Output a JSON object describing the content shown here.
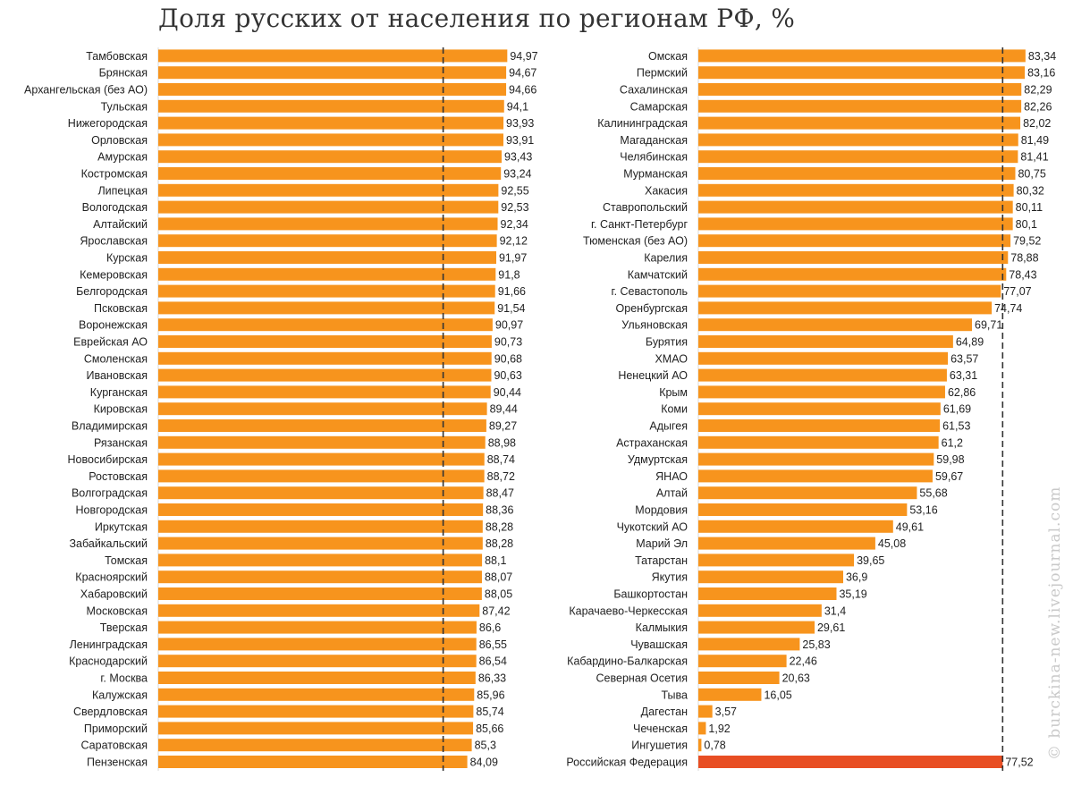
{
  "title": "Доля русских от населения по регионам РФ, %",
  "watermark": "© burckina-new.livejournal.com",
  "colors": {
    "bar": "#f7941d",
    "highlight_bar": "#e84e23",
    "reference_line": "#333333",
    "grid": "#d9d9d9"
  },
  "chart_data": [
    {
      "type": "bar",
      "orientation": "horizontal",
      "xlim": [
        0,
        100
      ],
      "reference_line": {
        "value": 77.52,
        "style": "dashed"
      },
      "categories": [
        "Тамбовская",
        "Брянская",
        "Архангельская (без АО)",
        "Тульская",
        "Нижегородская",
        "Орловская",
        "Амурская",
        "Костромская",
        "Липецкая",
        "Вологодская",
        "Алтайский",
        "Ярославская",
        "Курская",
        "Кемеровская",
        "Белгородская",
        "Псковская",
        "Воронежская",
        "Еврейская АО",
        "Смоленская",
        "Ивановская",
        "Курганская",
        "Кировская",
        "Владимирская",
        "Рязанская",
        "Новосибирская",
        "Ростовская",
        "Волгоградская",
        "Новгородская",
        "Иркутская",
        "Забайкальский",
        "Томская",
        "Красноярский",
        "Хабаровский",
        "Московская",
        "Тверская",
        "Ленинградская",
        "Краснодарский",
        "г. Москва",
        "Калужская",
        "Свердловская",
        "Приморский",
        "Саратовская",
        "Пензенская"
      ],
      "values": [
        94.97,
        94.67,
        94.66,
        94.1,
        93.93,
        93.91,
        93.43,
        93.24,
        92.55,
        92.53,
        92.34,
        92.12,
        91.97,
        91.8,
        91.66,
        91.54,
        90.97,
        90.73,
        90.68,
        90.63,
        90.44,
        89.44,
        89.27,
        88.98,
        88.74,
        88.72,
        88.47,
        88.36,
        88.28,
        88.28,
        88.1,
        88.07,
        88.05,
        87.42,
        86.6,
        86.55,
        86.54,
        86.33,
        85.96,
        85.74,
        85.66,
        85.3,
        84.09
      ],
      "value_labels": [
        "94,97",
        "94,67",
        "94,66",
        "94,1",
        "93,93",
        "93,91",
        "93,43",
        "93,24",
        "92,55",
        "92,53",
        "92,34",
        "92,12",
        "91,97",
        "91,8",
        "91,66",
        "91,54",
        "90,97",
        "90,73",
        "90,68",
        "90,63",
        "90,44",
        "89,44",
        "89,27",
        "88,98",
        "88,74",
        "88,72",
        "88,47",
        "88,36",
        "88,28",
        "88,28",
        "88,1",
        "88,07",
        "88,05",
        "87,42",
        "86,6",
        "86,55",
        "86,54",
        "86,33",
        "85,96",
        "85,74",
        "85,66",
        "85,3",
        "84,09"
      ]
    },
    {
      "type": "bar",
      "orientation": "horizontal",
      "xlim": [
        0,
        100
      ],
      "reference_line": {
        "value": 77.52,
        "style": "dashed"
      },
      "highlight_category": "Российская Федерация",
      "categories": [
        "Омская",
        "Пермский",
        "Сахалинская",
        "Самарская",
        "Калининградская",
        "Магаданская",
        "Челябинская",
        "Мурманская",
        "Хакасия",
        "Ставропольский",
        "г. Санкт-Петербург",
        "Тюменская (без АО)",
        "Карелия",
        "Камчатский",
        "г. Севастополь",
        "Оренбургская",
        "Ульяновская",
        "Бурятия",
        "ХМАО",
        "Ненецкий АО",
        "Крым",
        "Коми",
        "Адыгея",
        "Астраханская",
        "Удмуртская",
        "ЯНАО",
        "Алтай",
        "Мордовия",
        "Чукотский АО",
        "Марий Эл",
        "Татарстан",
        "Якутия",
        "Башкортостан",
        "Карачаево-Черкесская",
        "Калмыкия",
        "Чувашская",
        "Кабардино-Балкарская",
        "Северная Осетия",
        "Тыва",
        "Дагестан",
        "Чеченская",
        "Ингушетия",
        "Российская Федерация"
      ],
      "values": [
        83.34,
        83.16,
        82.29,
        82.26,
        82.02,
        81.49,
        81.41,
        80.75,
        80.32,
        80.11,
        80.1,
        79.52,
        78.88,
        78.43,
        77.07,
        74.74,
        69.71,
        64.89,
        63.57,
        63.31,
        62.86,
        61.69,
        61.53,
        61.2,
        59.98,
        59.67,
        55.68,
        53.16,
        49.61,
        45.08,
        39.65,
        36.9,
        35.19,
        31.4,
        29.61,
        25.83,
        22.46,
        20.63,
        16.05,
        3.57,
        1.92,
        0.78,
        77.52
      ],
      "value_labels": [
        "83,34",
        "83,16",
        "82,29",
        "82,26",
        "82,02",
        "81,49",
        "81,41",
        "80,75",
        "80,32",
        "80,11",
        "80,1",
        "79,52",
        "78,88",
        "78,43",
        "77,07",
        "74,74",
        "69,71",
        "64,89",
        "63,57",
        "63,31",
        "62,86",
        "61,69",
        "61,53",
        "61,2",
        "59,98",
        "59,67",
        "55,68",
        "53,16",
        "49,61",
        "45,08",
        "39,65",
        "36,9",
        "35,19",
        "31,4",
        "29,61",
        "25,83",
        "22,46",
        "20,63",
        "16,05",
        "3,57",
        "1,92",
        "0,78",
        "77,52"
      ]
    }
  ]
}
